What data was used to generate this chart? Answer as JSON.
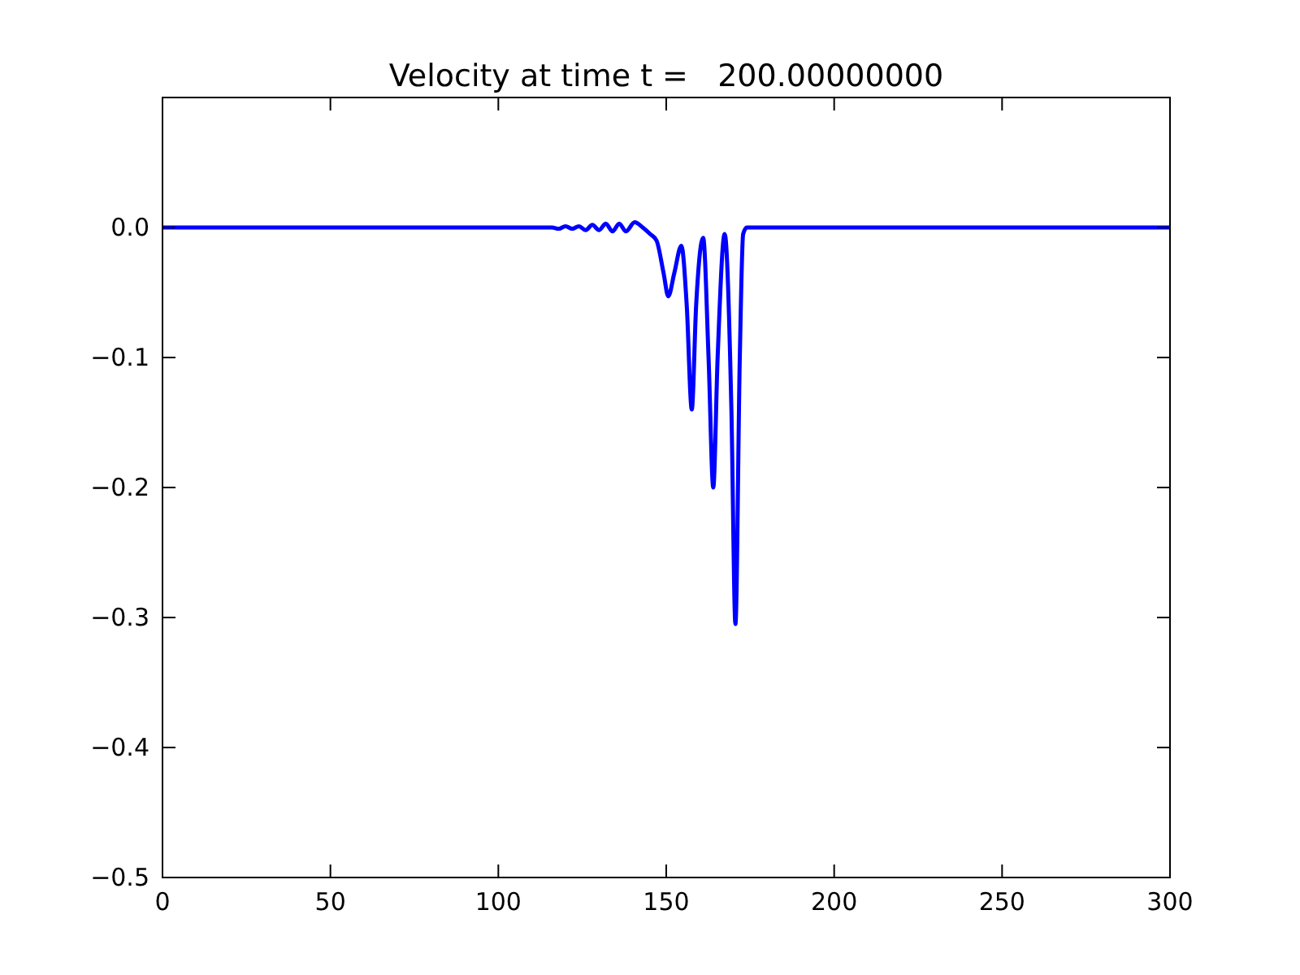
{
  "chart_data": {
    "type": "line",
    "title": "Velocity at time t =   200.00000000",
    "xlim": [
      0,
      300
    ],
    "ylim": [
      -0.5,
      0.1
    ],
    "xticks": [
      0,
      50,
      100,
      150,
      200,
      250,
      300
    ],
    "yticks": [
      {
        "value": -0.5,
        "label": "−0.5"
      },
      {
        "value": -0.4,
        "label": "−0.4"
      },
      {
        "value": -0.3,
        "label": "−0.3"
      },
      {
        "value": -0.2,
        "label": "−0.2"
      },
      {
        "value": -0.1,
        "label": "−0.1"
      },
      {
        "value": 0,
        "label": "0.0"
      }
    ],
    "grid": false,
    "marker": "none",
    "line_style": "solid",
    "series": [
      {
        "color": "#0000ff",
        "x": [
          0,
          50,
          100,
          112,
          116,
          118,
          120,
          122,
          124,
          126,
          128,
          130,
          132,
          134,
          136,
          138,
          140.6,
          143,
          145.2,
          147.1,
          149.2,
          150.6,
          152.4,
          154.5,
          156.1,
          157.6,
          158.9,
          161.0,
          162.6,
          164.0,
          165.3,
          167.4,
          169.4,
          170.6,
          171.9,
          172.9,
          174,
          200,
          250,
          300
        ],
        "values": [
          0,
          0,
          0,
          0,
          0,
          -0.001,
          0.001,
          -0.001,
          0.001,
          -0.002,
          0.002,
          -0.002,
          0.003,
          -0.003,
          0.003,
          -0.003,
          0.004,
          0,
          -0.005,
          -0.01,
          -0.035,
          -0.053,
          -0.035,
          -0.014,
          -0.06,
          -0.14,
          -0.06,
          -0.008,
          -0.1,
          -0.2,
          -0.1,
          -0.005,
          -0.14,
          -0.305,
          -0.1,
          -0.005,
          0,
          0,
          0,
          0
        ]
      }
    ]
  }
}
